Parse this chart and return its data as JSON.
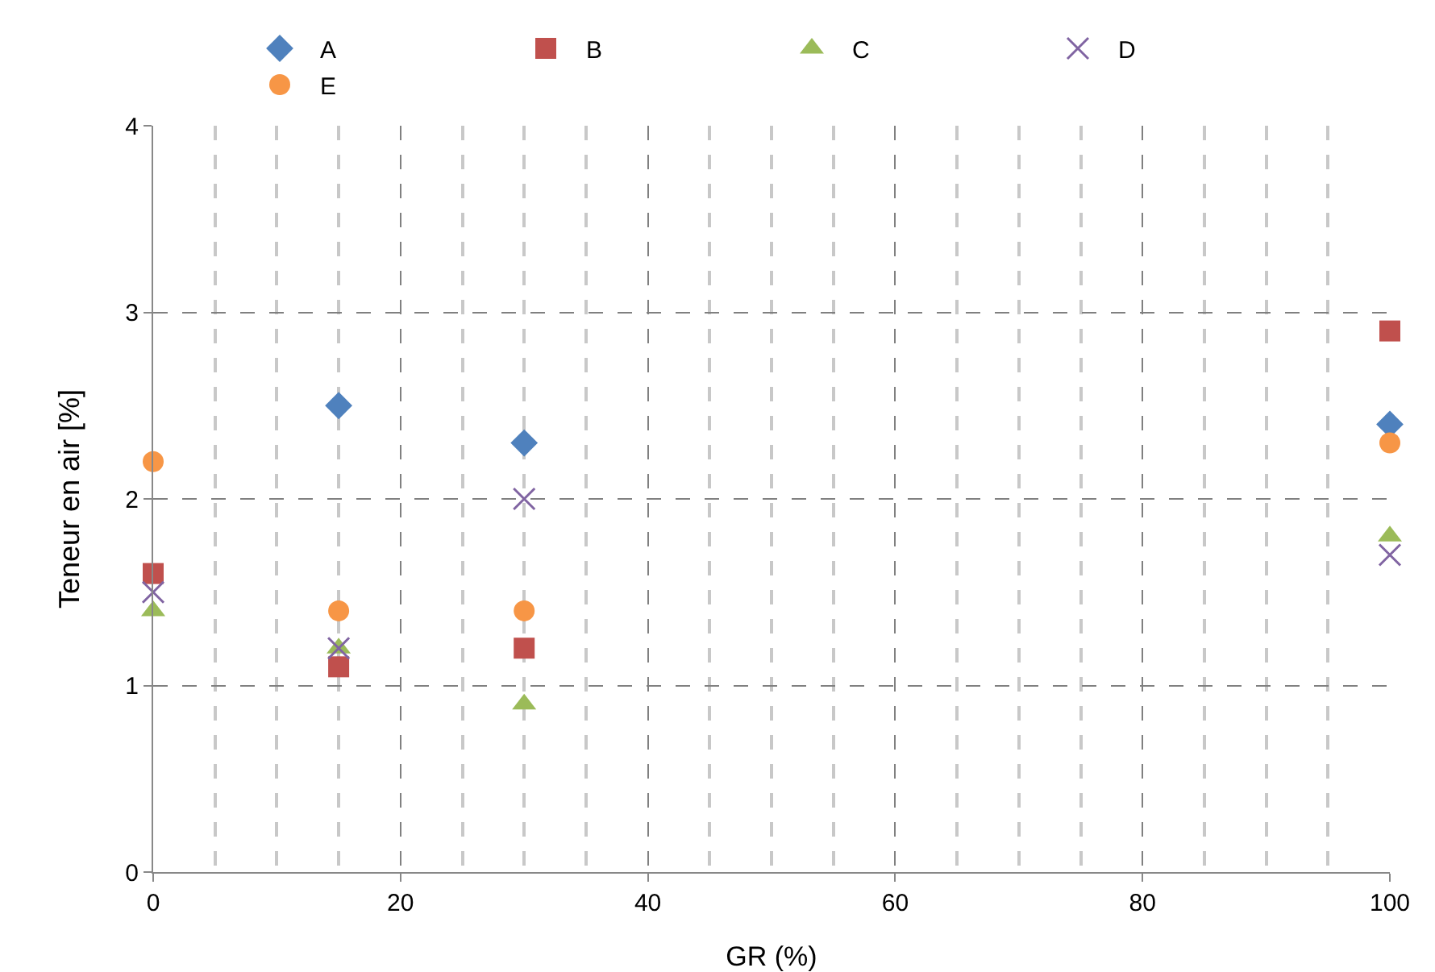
{
  "chart_data": {
    "type": "scatter",
    "xlabel": "GR (%)",
    "ylabel": "Teneur en air [%]",
    "x": [
      0,
      15,
      30,
      100
    ],
    "series": [
      {
        "name": "A",
        "color": "#4f81bd",
        "marker": "diamond",
        "values": [
          null,
          2.5,
          2.3,
          2.4
        ]
      },
      {
        "name": "B",
        "color": "#c0504d",
        "marker": "square",
        "values": [
          1.6,
          1.1,
          1.2,
          2.9
        ]
      },
      {
        "name": "C",
        "color": "#9bbb59",
        "marker": "triangle",
        "values": [
          1.4,
          1.2,
          0.9,
          1.8
        ]
      },
      {
        "name": "D",
        "color": "#8064a2",
        "marker": "cross",
        "values": [
          1.5,
          1.2,
          2.0,
          1.7
        ]
      },
      {
        "name": "E",
        "color": "#f79646",
        "marker": "circle",
        "values": [
          2.2,
          1.4,
          1.4,
          2.3
        ]
      }
    ],
    "xlim": [
      0,
      100
    ],
    "xticks": [
      0,
      {
        "value": 5,
        "label": null
      },
      {
        "value": 10,
        "label": null
      },
      {
        "value": 15,
        "label": null
      },
      20,
      {
        "value": 25,
        "label": null
      },
      {
        "value": 30,
        "label": null
      },
      {
        "value": 35,
        "label": null
      },
      40,
      {
        "value": 45,
        "label": null
      },
      {
        "value": 50,
        "label": null
      },
      {
        "value": 55,
        "label": null
      },
      60,
      {
        "value": 65,
        "label": null
      },
      {
        "value": 70,
        "label": null
      },
      {
        "value": 75,
        "label": null
      },
      80,
      {
        "value": 85,
        "label": null
      },
      {
        "value": 90,
        "label": null
      },
      {
        "value": 95,
        "label": null
      },
      100
    ],
    "ylim": [
      0,
      4
    ],
    "yticks": [
      0,
      1,
      2,
      3,
      4
    ],
    "grid": true,
    "legend": "top"
  }
}
